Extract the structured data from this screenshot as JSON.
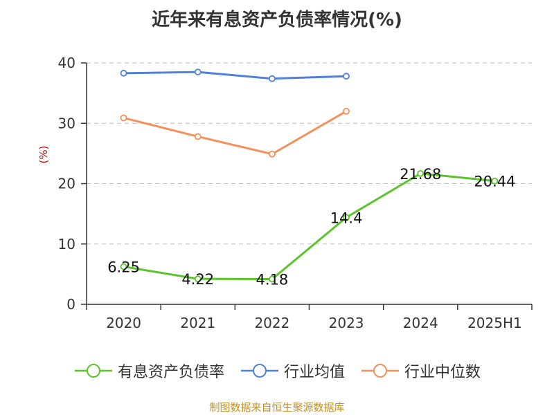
{
  "title": "近年来有息资产负债率情况(%)",
  "source_note": "制图数据来自恒生聚源数据库",
  "chart_data": {
    "type": "line",
    "title": "近年来有息资产负债率情况(%)",
    "ylabel": "(%)",
    "xlabel": "",
    "categories": [
      "2020",
      "2021",
      "2022",
      "2023",
      "2024",
      "2025H1"
    ],
    "ylim": [
      0,
      40
    ],
    "yticks": [
      0,
      10,
      20,
      30,
      40
    ],
    "grid": true,
    "legend_position": "bottom",
    "series": [
      {
        "name": "有息资产负债率",
        "color": "#5bc42a",
        "values": [
          6.25,
          4.22,
          4.18,
          14.4,
          21.68,
          20.44
        ],
        "labels": [
          "6.25",
          "4.22",
          "4.18",
          "14.4",
          "21.68",
          "20.44"
        ]
      },
      {
        "name": "行业均值",
        "color": "#4f81d9",
        "values": [
          38.3,
          38.5,
          37.4,
          37.8,
          null,
          null
        ]
      },
      {
        "name": "行业中位数",
        "color": "#f5905a",
        "values": [
          30.9,
          27.8,
          24.9,
          32.0,
          null,
          null
        ]
      }
    ]
  }
}
